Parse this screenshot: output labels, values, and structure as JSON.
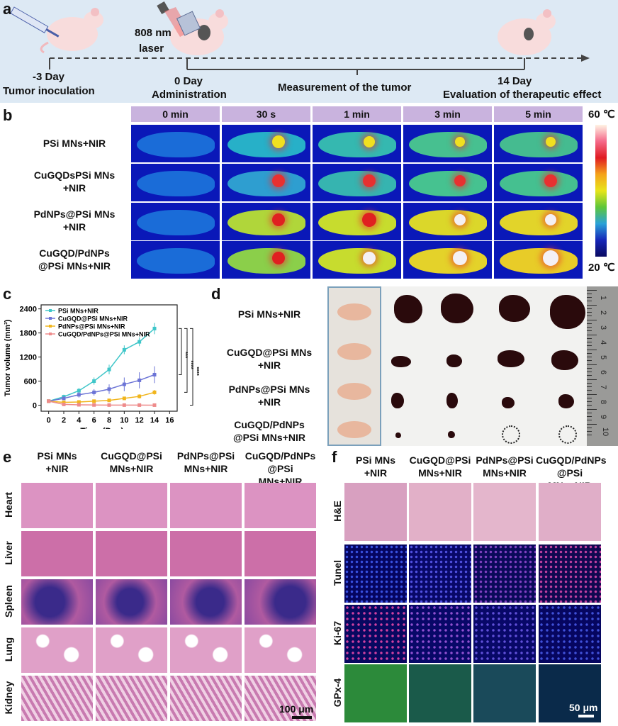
{
  "panel_labels": {
    "a": "a",
    "b": "b",
    "c": "c",
    "d": "d",
    "e": "e",
    "f": "f"
  },
  "timeline": {
    "laser_wavelength": "808 nm",
    "laser_word": "laser",
    "day_m3": "-3 Day",
    "inoculation": "Tumor inoculation",
    "day_0": "0 Day",
    "administration": "Administration",
    "measurement": "Measurement of the tumor",
    "day_14": "14 Day",
    "evaluation": "Evaluation of therapeutic effect"
  },
  "thermal": {
    "time_headers": [
      "0 min",
      "30 s",
      "1 min",
      "3 min",
      "5 min"
    ],
    "rows": [
      {
        "line1": "PSi MNs+NIR",
        "line2": ""
      },
      {
        "line1": "CuGQDsPSi MNs",
        "line2": "+NIR"
      },
      {
        "line1": "PdNPs@PSi MNs",
        "line2": "+NIR"
      },
      {
        "line1": "CuGQD/PdNPs",
        "line2": "@PSi MNs+NIR"
      }
    ],
    "scale_max": "60 ℃",
    "scale_min": "20 ℃"
  },
  "chart_data": {
    "type": "line",
    "xlabel": "Time (Day)",
    "ylabel": "Tumor volume (mm³)",
    "x": [
      0,
      2,
      4,
      6,
      8,
      10,
      12,
      14
    ],
    "xticks": [
      0,
      2,
      4,
      6,
      8,
      10,
      12,
      14,
      16
    ],
    "yticks": [
      0,
      600,
      1200,
      1800,
      2400
    ],
    "xlim": [
      -1,
      17
    ],
    "ylim": [
      -150,
      2500
    ],
    "series": [
      {
        "name": "PSi MNs+NIR",
        "color": "#3fc6c9",
        "values": [
          100,
          210,
          360,
          600,
          890,
          1380,
          1580,
          1910
        ],
        "err": [
          20,
          50,
          70,
          90,
          120,
          110,
          110,
          140
        ]
      },
      {
        "name": "CuGQD@PSi MNs+NIR",
        "color": "#6c74d6",
        "values": [
          100,
          170,
          260,
          320,
          400,
          520,
          620,
          760
        ],
        "err": [
          20,
          40,
          70,
          80,
          120,
          170,
          200,
          210
        ]
      },
      {
        "name": "PdNPs@PSi MNs+NIR",
        "color": "#f1b51c",
        "values": [
          100,
          70,
          80,
          100,
          120,
          170,
          220,
          320
        ],
        "err": [
          15,
          20,
          25,
          30,
          35,
          40,
          50,
          60
        ]
      },
      {
        "name": "CuGQD/PdNPs@PSi MNs+NIR",
        "color": "#ee8b8b",
        "values": [
          100,
          20,
          10,
          5,
          3,
          2,
          2,
          1
        ],
        "err": [
          10,
          5,
          3,
          2,
          2,
          1,
          1,
          1
        ]
      }
    ],
    "significance": [
      "***",
      "****",
      "****"
    ]
  },
  "panel_d": {
    "rows": [
      {
        "line1": "PSi MNs+NIR",
        "line2": ""
      },
      {
        "line1": "CuGQD@PSi MNs",
        "line2": "+NIR"
      },
      {
        "line1": "PdNPs@PSi MNs",
        "line2": "+NIR"
      },
      {
        "line1": "CuGQD/PdNPs",
        "line2": "@PSi MNs+NIR"
      }
    ],
    "ruler_numbers": [
      "1",
      "2",
      "3",
      "4",
      "5",
      "6",
      "7",
      "8",
      "9",
      "10"
    ]
  },
  "panel_e": {
    "headers": [
      {
        "line1": "PSi MNs",
        "line2": "+NIR"
      },
      {
        "line1": "CuGQD@PSi",
        "line2": "MNs+NIR"
      },
      {
        "line1": "PdNPs@PSi",
        "line2": "MNs+NIR"
      },
      {
        "line1": "CuGQD/PdNPs",
        "line2": "@PSi MNs+NIR"
      }
    ],
    "organs": [
      "Heart",
      "Liver",
      "Spleen",
      "Lung",
      "Kidney"
    ],
    "scalebar": "100 μm"
  },
  "panel_f": {
    "headers": [
      {
        "line1": "PSi MNs",
        "line2": "+NIR"
      },
      {
        "line1": "CuGQD@PSi",
        "line2": "MNs+NIR"
      },
      {
        "line1": "PdNPs@PSi",
        "line2": "MNs+NIR"
      },
      {
        "line1": "CuGQD/PdNPs",
        "line2": "@PSi MNs+NIR"
      }
    ],
    "stains": [
      "H&E",
      "Tunel",
      "Ki-67",
      "GPx-4"
    ],
    "scalebar": "50 μm"
  },
  "colors": {
    "timeline_bg": "#dde9f4",
    "header_purple": "#c9b3de",
    "tumor": "#2a0a0c"
  }
}
